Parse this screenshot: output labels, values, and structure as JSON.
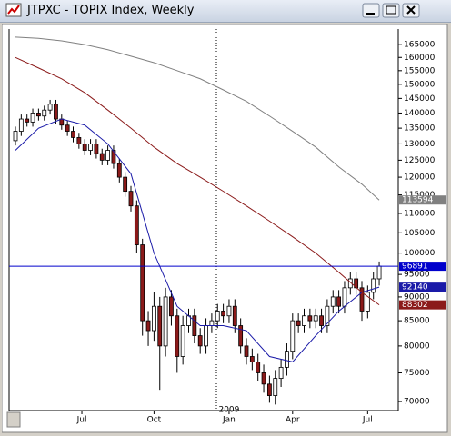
{
  "window_title": "JTPXC - TOPIX Index, Weekly",
  "chart_data": {
    "type": "candlestick",
    "log_scale": true,
    "ylim": [
      68500,
      171300
    ],
    "yticks": [
      70000,
      75000,
      80000,
      85000,
      90000,
      95000,
      100000,
      105000,
      110000,
      115000,
      120000,
      125000,
      130000,
      135000,
      140000,
      145000,
      150000,
      155000,
      160000,
      165000
    ],
    "x_labels": [
      {
        "label": "Jul",
        "index": 11.5
      },
      {
        "label": "Oct",
        "index": 24
      },
      {
        "label": "Jan",
        "index": 37
      },
      {
        "label": "Apr",
        "index": 48
      },
      {
        "label": "Jul",
        "index": 61
      }
    ],
    "year_label": {
      "label": "2009",
      "index": 37
    },
    "up_color": "#ffffff",
    "down_color": "#8b1a1a",
    "open": [
      131000,
      134000,
      138000,
      137000,
      140000,
      139000,
      141000,
      143000,
      138000,
      136000,
      134000,
      132000,
      130000,
      128000,
      130000,
      127000,
      125000,
      128000,
      124000,
      120000,
      116000,
      112000,
      102000,
      85000,
      83000,
      88000,
      80000,
      90000,
      86000,
      78000,
      84000,
      86000,
      82000,
      80000,
      84000,
      85000,
      87000,
      86000,
      88000,
      84000,
      80000,
      78000,
      77000,
      75000,
      73000,
      71000,
      74000,
      76000,
      79000,
      85000,
      84000,
      86000,
      85000,
      86000,
      84000,
      88000,
      90000,
      88000,
      92000,
      94000,
      92000,
      87000,
      91000,
      94000
    ],
    "high": [
      135500,
      139500,
      139500,
      141500,
      141500,
      142500,
      144500,
      144500,
      139500,
      137500,
      135500,
      133500,
      131500,
      131500,
      131500,
      128500,
      129500,
      129500,
      125500,
      121500,
      117500,
      113500,
      103500,
      87000,
      91000,
      90000,
      92000,
      91500,
      87500,
      86000,
      87500,
      87500,
      83500,
      85500,
      86500,
      88500,
      88500,
      89500,
      89500,
      85500,
      81500,
      79500,
      78500,
      76500,
      74500,
      75500,
      77500,
      80500,
      86500,
      86500,
      87500,
      87500,
      87500,
      87500,
      89500,
      91500,
      91500,
      93500,
      95500,
      95500,
      93500,
      92500,
      95500,
      98000
    ],
    "low": [
      129500,
      132500,
      135500,
      135500,
      137500,
      137500,
      139500,
      136500,
      134500,
      132500,
      130500,
      128500,
      126500,
      126500,
      125500,
      123500,
      123500,
      122500,
      118500,
      114500,
      110500,
      100000,
      82000,
      80000,
      81000,
      72000,
      78000,
      84000,
      75000,
      76500,
      82500,
      80500,
      78500,
      78500,
      82500,
      83500,
      84500,
      84500,
      82500,
      78500,
      76500,
      75500,
      73500,
      71500,
      69800,
      69500,
      72500,
      74500,
      77500,
      82500,
      82500,
      83500,
      83500,
      82500,
      82500,
      86500,
      86500,
      86500,
      90500,
      90500,
      85000,
      85500,
      89500,
      92500
    ],
    "close": [
      134000,
      138000,
      137000,
      140000,
      139000,
      141000,
      143000,
      138000,
      136000,
      134000,
      132000,
      130000,
      128000,
      130000,
      127000,
      125000,
      128000,
      124000,
      120000,
      116000,
      112000,
      102000,
      85000,
      83000,
      88000,
      80000,
      90000,
      86000,
      78000,
      84000,
      86000,
      82000,
      80000,
      84000,
      85000,
      87000,
      86000,
      88000,
      84000,
      80000,
      78000,
      77000,
      75000,
      73000,
      71000,
      74000,
      76000,
      79000,
      85000,
      84000,
      86000,
      85000,
      86000,
      84000,
      88000,
      90000,
      88000,
      92000,
      94000,
      92000,
      87000,
      91000,
      94000,
      96891
    ],
    "last_color": "#0000cc",
    "lines": [
      {
        "color": "#1a1aa8",
        "x": [
          0,
          4,
          8,
          12,
          16,
          20,
          24,
          28,
          32,
          36,
          40,
          44,
          48,
          52,
          56,
          60,
          63
        ],
        "values": [
          128000,
          135000,
          138000,
          136000,
          130000,
          121000,
          100000,
          88000,
          84000,
          84000,
          83000,
          78000,
          77000,
          82000,
          87000,
          91000,
          92140
        ]
      },
      {
        "color": "#8b1a1a",
        "x": [
          0,
          4,
          8,
          12,
          16,
          20,
          24,
          28,
          32,
          36,
          40,
          44,
          48,
          52,
          56,
          60,
          63
        ],
        "values": [
          160000,
          156000,
          152000,
          147000,
          141000,
          135000,
          129000,
          124000,
          120000,
          116000,
          112000,
          108000,
          104000,
          100000,
          95500,
          91000,
          88302
        ]
      },
      {
        "color": "#808080",
        "x": [
          0,
          4,
          8,
          12,
          16,
          20,
          24,
          28,
          32,
          36,
          40,
          44,
          48,
          52,
          56,
          60,
          63
        ],
        "values": [
          168000,
          167500,
          166500,
          165000,
          163000,
          160500,
          158000,
          155000,
          152000,
          148000,
          144000,
          139000,
          134000,
          129000,
          123000,
          118000,
          113594
        ]
      }
    ]
  }
}
